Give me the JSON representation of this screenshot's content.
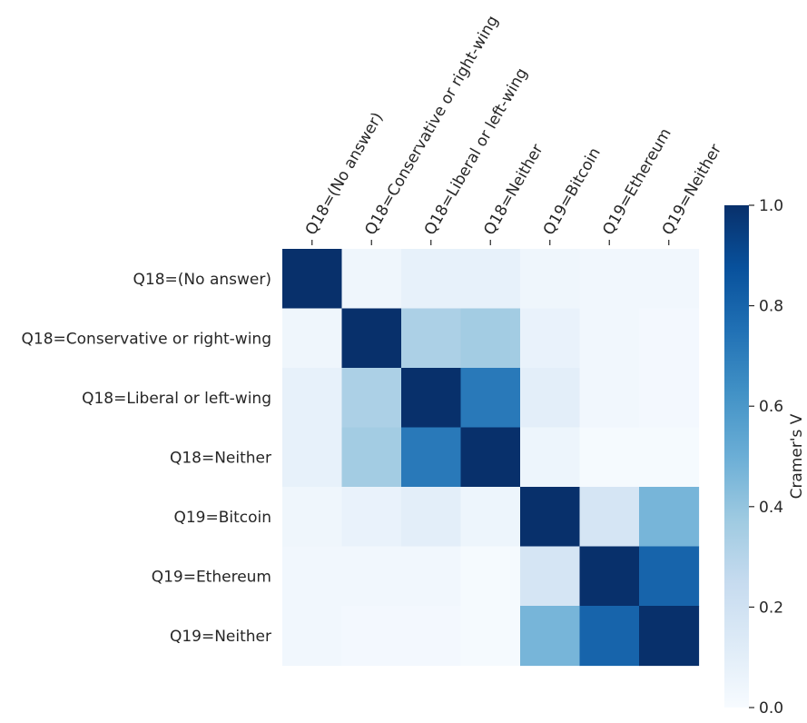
{
  "chart_data": {
    "type": "heatmap",
    "title": "",
    "x_labels": [
      "Q18=(No answer)",
      "Q18=Conservative or right-wing",
      "Q18=Liberal or left-wing",
      "Q18=Neither",
      "Q19=Bitcoin",
      "Q19=Ethereum",
      "Q19=Neither"
    ],
    "y_labels": [
      "Q18=(No answer)",
      "Q18=Conservative or right-wing",
      "Q18=Liberal or left-wing",
      "Q18=Neither",
      "Q19=Bitcoin",
      "Q19=Ethereum",
      "Q19=Neither"
    ],
    "values": [
      [
        1.0,
        0.04,
        0.08,
        0.08,
        0.04,
        0.03,
        0.03
      ],
      [
        0.04,
        1.0,
        0.33,
        0.36,
        0.07,
        0.03,
        0.02
      ],
      [
        0.08,
        0.33,
        1.0,
        0.72,
        0.1,
        0.03,
        0.02
      ],
      [
        0.08,
        0.36,
        0.72,
        1.0,
        0.05,
        0.01,
        0.01
      ],
      [
        0.04,
        0.07,
        0.1,
        0.05,
        1.0,
        0.17,
        0.47
      ],
      [
        0.03,
        0.03,
        0.03,
        0.01,
        0.17,
        1.0,
        0.8
      ],
      [
        0.03,
        0.02,
        0.02,
        0.01,
        0.47,
        0.8,
        1.0
      ]
    ],
    "colorbar": {
      "label": "Cramer's V",
      "vmin": 0.0,
      "vmax": 1.0,
      "ticks": [
        "0.0",
        "0.2",
        "0.4",
        "0.6",
        "0.8",
        "1.0"
      ],
      "colormap": "Blues",
      "colors": [
        "#f7fbff",
        "#deebf7",
        "#c6dbef",
        "#9ecae1",
        "#6baed6",
        "#4292c6",
        "#2171b5",
        "#08519c",
        "#08306b"
      ]
    },
    "grid": false
  }
}
